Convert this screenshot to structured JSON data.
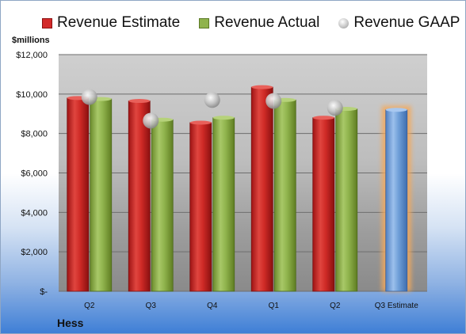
{
  "chart_data": {
    "type": "bar",
    "unit_label": "$millions",
    "company": "Hess",
    "categories": [
      "Q2",
      "Q3",
      "Q4",
      "Q1",
      "Q2",
      "Q3 Estimate"
    ],
    "series": [
      {
        "name": "Revenue Estimate",
        "values": [
          9800,
          9650,
          8550,
          10350,
          8800,
          null
        ],
        "color": "#d32a2a"
      },
      {
        "name": "Revenue Actual",
        "values": [
          9750,
          8700,
          8800,
          9700,
          9250,
          9200
        ],
        "color": "#8fb34c"
      },
      {
        "name": "Revenue GAAP",
        "values": [
          9850,
          8650,
          9700,
          9650,
          9300,
          null
        ],
        "color": "#b5b5b5"
      }
    ],
    "estimate_bar_color": "#6f9fd8",
    "estimate_glow_color": "#f5a95a",
    "y_ticks": [
      "$-",
      "$2,000",
      "$4,000",
      "$6,000",
      "$8,000",
      "$10,000",
      "$12,000"
    ],
    "ylim": [
      0,
      12000
    ],
    "grid": true,
    "legend_position": "top"
  }
}
